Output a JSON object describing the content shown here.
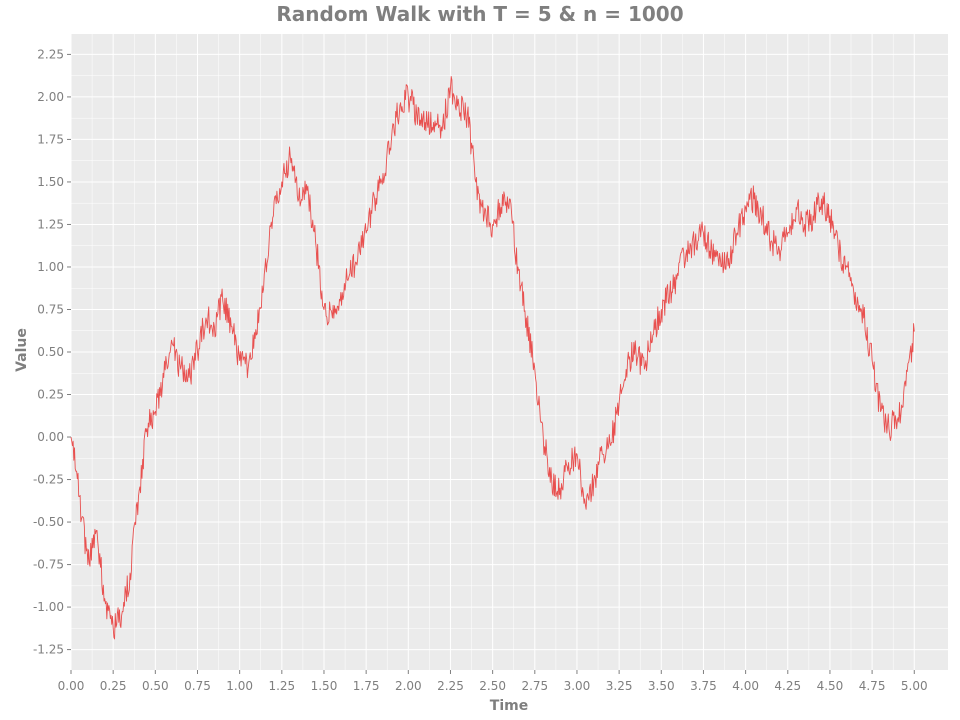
{
  "chart_data": {
    "type": "line",
    "title": "Random Walk with T = 5 & n = 1000",
    "xlabel": "Time",
    "ylabel": "Value",
    "xlim": [
      0.0,
      5.2
    ],
    "ylim": [
      -1.37,
      2.37
    ],
    "x_ticks": [
      "0.00",
      "0.25",
      "0.50",
      "0.75",
      "1.00",
      "1.25",
      "1.50",
      "1.75",
      "2.00",
      "2.25",
      "2.50",
      "2.75",
      "3.00",
      "3.25",
      "3.50",
      "3.75",
      "4.00",
      "4.25",
      "4.50",
      "4.75",
      "5.00"
    ],
    "y_ticks": [
      "-1.25",
      "-1.00",
      "-0.75",
      "-0.50",
      "-0.25",
      "0.00",
      "0.25",
      "0.50",
      "0.75",
      "1.00",
      "1.25",
      "1.50",
      "1.75",
      "2.00",
      "2.25"
    ],
    "grid": true,
    "colors": {
      "background": "#ebebeb",
      "grid": "#ffffff",
      "line": "#e8504f",
      "text": "#7f7f7f"
    },
    "series": [
      {
        "x": [
          0.0,
          0.05,
          0.1,
          0.15,
          0.2,
          0.25,
          0.3,
          0.35,
          0.4,
          0.45,
          0.5,
          0.55,
          0.6,
          0.65,
          0.7,
          0.75,
          0.8,
          0.85,
          0.9,
          0.95,
          1.0,
          1.05,
          1.1,
          1.15,
          1.2,
          1.25,
          1.3,
          1.35,
          1.4,
          1.45,
          1.5,
          1.55,
          1.6,
          1.65,
          1.7,
          1.75,
          1.8,
          1.85,
          1.9,
          1.95,
          2.0,
          2.05,
          2.1,
          2.15,
          2.2,
          2.25,
          2.3,
          2.35,
          2.4,
          2.45,
          2.5,
          2.55,
          2.6,
          2.65,
          2.7,
          2.75,
          2.8,
          2.85,
          2.9,
          2.95,
          3.0,
          3.05,
          3.1,
          3.15,
          3.2,
          3.25,
          3.3,
          3.35,
          3.4,
          3.45,
          3.5,
          3.55,
          3.6,
          3.65,
          3.7,
          3.75,
          3.8,
          3.85,
          3.9,
          3.95,
          4.0,
          4.05,
          4.1,
          4.15,
          4.2,
          4.25,
          4.3,
          4.35,
          4.4,
          4.45,
          4.5,
          4.55,
          4.6,
          4.65,
          4.7,
          4.75,
          4.8,
          4.85,
          4.9,
          4.95,
          5.0
        ],
        "values": [
          0.0,
          -0.35,
          -0.75,
          -0.55,
          -0.95,
          -1.12,
          -1.05,
          -0.8,
          -0.35,
          0.05,
          0.15,
          0.35,
          0.55,
          0.4,
          0.35,
          0.5,
          0.7,
          0.65,
          0.8,
          0.65,
          0.45,
          0.4,
          0.6,
          1.0,
          1.3,
          1.5,
          1.65,
          1.4,
          1.45,
          1.15,
          0.75,
          0.7,
          0.85,
          0.95,
          1.05,
          1.2,
          1.4,
          1.55,
          1.75,
          1.95,
          2.0,
          1.9,
          1.85,
          1.85,
          1.8,
          2.05,
          1.95,
          1.9,
          1.5,
          1.3,
          1.25,
          1.35,
          1.4,
          1.0,
          0.7,
          0.4,
          0.0,
          -0.25,
          -0.3,
          -0.15,
          -0.1,
          -0.4,
          -0.25,
          -0.1,
          -0.05,
          0.2,
          0.45,
          0.5,
          0.4,
          0.6,
          0.75,
          0.85,
          0.95,
          1.1,
          1.15,
          1.2,
          1.1,
          1.05,
          1.05,
          1.2,
          1.35,
          1.4,
          1.3,
          1.15,
          1.1,
          1.2,
          1.35,
          1.25,
          1.3,
          1.4,
          1.3,
          1.1,
          1.0,
          0.85,
          0.7,
          0.45,
          0.15,
          0.05,
          0.1,
          0.3,
          0.62
        ]
      }
    ]
  }
}
